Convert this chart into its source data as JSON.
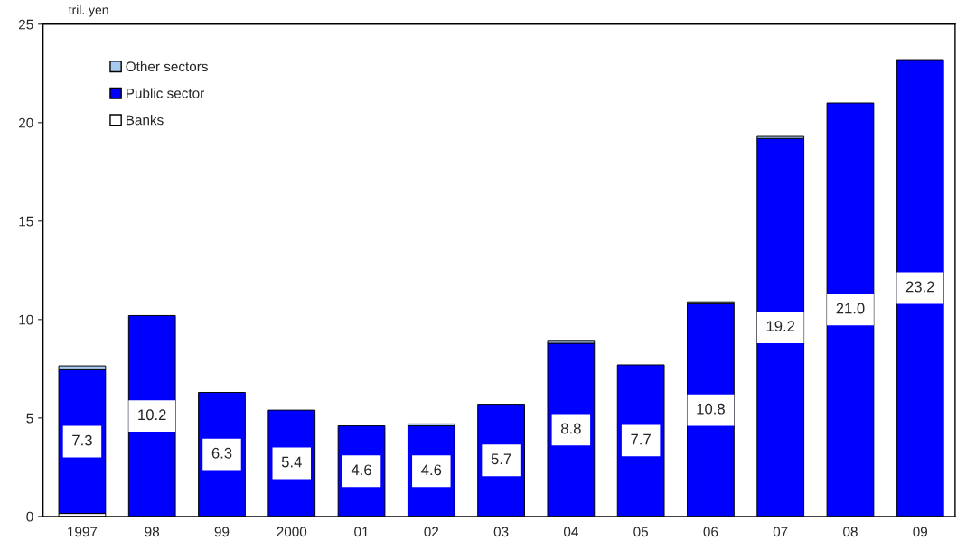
{
  "chart_data": {
    "type": "bar",
    "stacked": true,
    "ylabel": "tril. yen",
    "categories": [
      "1997",
      "98",
      "99",
      "2000",
      "01",
      "02",
      "03",
      "04",
      "05",
      "06",
      "07",
      "08",
      "09"
    ],
    "series": [
      {
        "name": "Banks",
        "color": "#ffffff",
        "values": [
          0.15,
          0,
          0,
          0,
          0,
          0,
          0,
          0,
          0,
          0,
          0,
          0,
          0
        ]
      },
      {
        "name": "Public sector",
        "color": "#0000ff",
        "values": [
          7.3,
          10.2,
          6.3,
          5.4,
          4.6,
          4.6,
          5.7,
          8.8,
          7.7,
          10.8,
          19.2,
          21.0,
          23.2
        ],
        "value_labels": [
          "7.3",
          "10.2",
          "6.3",
          "5.4",
          "4.6",
          "4.6",
          "5.7",
          "8.8",
          "7.7",
          "10.8",
          "19.2",
          "21.0",
          "23.2"
        ]
      },
      {
        "name": "Other sectors",
        "color": "#a6caf0",
        "values": [
          0.2,
          0,
          0,
          0,
          0,
          0.1,
          0,
          0.1,
          0,
          0.1,
          0.1,
          0,
          0
        ]
      }
    ],
    "ylim": [
      0,
      25
    ],
    "yticks": [
      0,
      5,
      10,
      15,
      20,
      25
    ],
    "grid": false,
    "legend": "top left"
  }
}
